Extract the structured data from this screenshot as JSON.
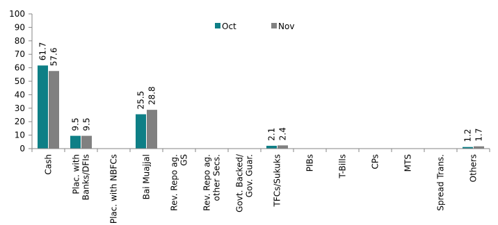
{
  "chart_data": {
    "type": "bar",
    "title": "",
    "xlabel": "",
    "ylabel": "",
    "ylim": [
      0,
      100
    ],
    "yticks": [
      0,
      10,
      20,
      30,
      40,
      50,
      60,
      70,
      80,
      90,
      100
    ],
    "grid": false,
    "legend_position": "top-center",
    "categories": [
      "Cash",
      "Plac. with Banks/DFIs",
      "Plac. with NBFCs",
      "Bai Muajjal",
      "Rev. Repo ag. GS",
      "Rev. Repo ag. other Secs.",
      "Govt. Backed/ Gov. Guar.",
      "TFCs/Sukuks",
      "PIBs",
      "T-Bills",
      "CPs",
      "MTS",
      "Spread Trans.",
      "Others"
    ],
    "category_lines": [
      [
        "Cash"
      ],
      [
        "Plac. with",
        "Banks/DFIs"
      ],
      [
        "Plac. with NBFCs"
      ],
      [
        "Bai Muajjal"
      ],
      [
        "Rev. Repo ag.",
        "GS"
      ],
      [
        "Rev. Repo ag.",
        "other Secs."
      ],
      [
        "Govt. Backed/",
        "Gov. Guar."
      ],
      [
        "TFCs/Sukuks"
      ],
      [
        "PIBs"
      ],
      [
        "T-Bills"
      ],
      [
        "CPs"
      ],
      [
        "MTS"
      ],
      [
        "Spread Trans."
      ],
      [
        "Others"
      ]
    ],
    "series": [
      {
        "name": "Oct",
        "color": "#0e7f86",
        "values": [
          61.7,
          9.5,
          0,
          25.5,
          0,
          0,
          0,
          2.1,
          0,
          0,
          0,
          0,
          0,
          1.2
        ],
        "labels": [
          "61.7",
          "9.5",
          "",
          "25.5",
          "",
          "",
          "",
          "2.1",
          "",
          "",
          "",
          "",
          "",
          "1.2"
        ]
      },
      {
        "name": "Nov",
        "color": "#808080",
        "values": [
          57.6,
          9.5,
          0,
          28.8,
          0,
          0,
          0,
          2.4,
          0,
          0,
          0,
          0,
          0,
          1.7
        ],
        "labels": [
          "57.6",
          "9.5",
          "",
          "28.8",
          "",
          "",
          "",
          "2.4",
          "",
          "",
          "",
          "",
          "",
          "1.7"
        ]
      }
    ]
  }
}
